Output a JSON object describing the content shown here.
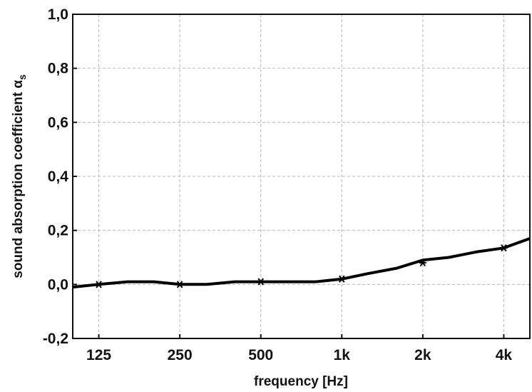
{
  "chart_data": {
    "type": "line",
    "xlabel": "frequency [Hz]",
    "ylabel": "sound absorption coefficient α",
    "ylabel_subscript": "s",
    "ylim": [
      -0.2,
      1.0
    ],
    "y_ticks": [
      "-0,2",
      "0,0",
      "0,2",
      "0,4",
      "0,6",
      "0,8",
      "1,0"
    ],
    "y_tick_values": [
      -0.2,
      0.0,
      0.2,
      0.4,
      0.6,
      0.8,
      1.0
    ],
    "x_scale": "log (third-octave bands)",
    "x_ticks": [
      "125",
      "250",
      "500",
      "1k",
      "2k",
      "4k"
    ],
    "x_tick_values": [
      125,
      250,
      500,
      1000,
      2000,
      4000
    ],
    "xlim": [
      100,
      5000
    ],
    "grid": true,
    "series": [
      {
        "style": "line",
        "x": [
          100,
          125,
          160,
          200,
          250,
          315,
          400,
          500,
          630,
          800,
          1000,
          1250,
          1600,
          2000,
          2500,
          3150,
          4000,
          5000
        ],
        "values": [
          -0.01,
          0.0,
          0.01,
          0.01,
          0.0,
          0.0,
          0.01,
          0.01,
          0.01,
          0.01,
          0.02,
          0.04,
          0.06,
          0.09,
          0.1,
          0.12,
          0.135,
          0.17
        ]
      },
      {
        "style": "markers",
        "marker": "asterisk",
        "x": [
          125,
          250,
          500,
          1000,
          2000,
          4000
        ],
        "values": [
          0.0,
          0.0,
          0.01,
          0.02,
          0.08,
          0.135
        ]
      }
    ]
  }
}
